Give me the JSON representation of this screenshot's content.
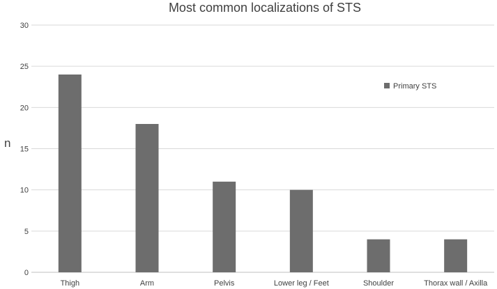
{
  "chart_data": {
    "type": "bar",
    "title": "Most common localizations of STS",
    "xlabel": "",
    "ylabel": "n",
    "categories": [
      "Thigh",
      "Arm",
      "Pelvis",
      "Lower leg / Feet",
      "Shoulder",
      "Thorax wall / Axilla"
    ],
    "series": [
      {
        "name": "Primary STS",
        "values": [
          24,
          18,
          11,
          10,
          4,
          4
        ],
        "color": "#6d6d6d"
      }
    ],
    "ylim": [
      0,
      30
    ],
    "yticks": [
      0,
      5,
      10,
      15,
      20,
      25,
      30
    ],
    "grid": true,
    "legend": "top-right"
  }
}
